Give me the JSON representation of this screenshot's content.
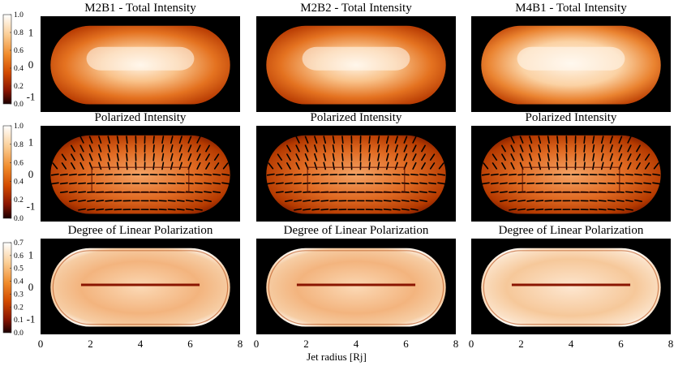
{
  "chart_data": {
    "type": "heatmap",
    "xlabel": "Jet radius [Rj]",
    "x_ticks": [
      "0",
      "2",
      "4",
      "6",
      "8"
    ],
    "xlim": [
      0,
      8
    ],
    "y_ticks": [
      "1",
      "0",
      "-1"
    ],
    "ylim": [
      -1.5,
      1.5
    ],
    "colormap": "hot (black-red-orange-white)",
    "colorbars": [
      {
        "row": 0,
        "ticks": [
          "1.0",
          "0.8",
          "0.6",
          "0.4",
          "0.2",
          "0.0"
        ],
        "range": [
          0.0,
          1.0
        ]
      },
      {
        "row": 1,
        "ticks": [
          "1.0",
          "0.8",
          "0.6",
          "0.4",
          "0.2",
          "0.0"
        ],
        "range": [
          0.0,
          1.0
        ]
      },
      {
        "row": 2,
        "ticks": [
          "0.7",
          "0.6",
          "0.5",
          "0.4",
          "0.3",
          "0.2",
          "0.1",
          "0.0"
        ],
        "range": [
          0.0,
          0.7
        ]
      }
    ],
    "columns": [
      "M2B1",
      "M2B2",
      "M4B1"
    ],
    "panels": [
      {
        "row": 0,
        "col": 0,
        "title": "M2B1 - Total Intensity"
      },
      {
        "row": 0,
        "col": 1,
        "title": "M2B2 - Total Intensity"
      },
      {
        "row": 0,
        "col": 2,
        "title": "M4B1 - Total Intensity"
      },
      {
        "row": 1,
        "col": 0,
        "title": "Polarized Intensity"
      },
      {
        "row": 1,
        "col": 1,
        "title": "Polarized Intensity"
      },
      {
        "row": 1,
        "col": 2,
        "title": "Polarized Intensity"
      },
      {
        "row": 2,
        "col": 0,
        "title": "Degree of Linear Polarization"
      },
      {
        "row": 2,
        "col": 1,
        "title": "Degree of Linear Polarization"
      },
      {
        "row": 2,
        "col": 2,
        "title": "Degree of Linear Polarization"
      }
    ]
  }
}
